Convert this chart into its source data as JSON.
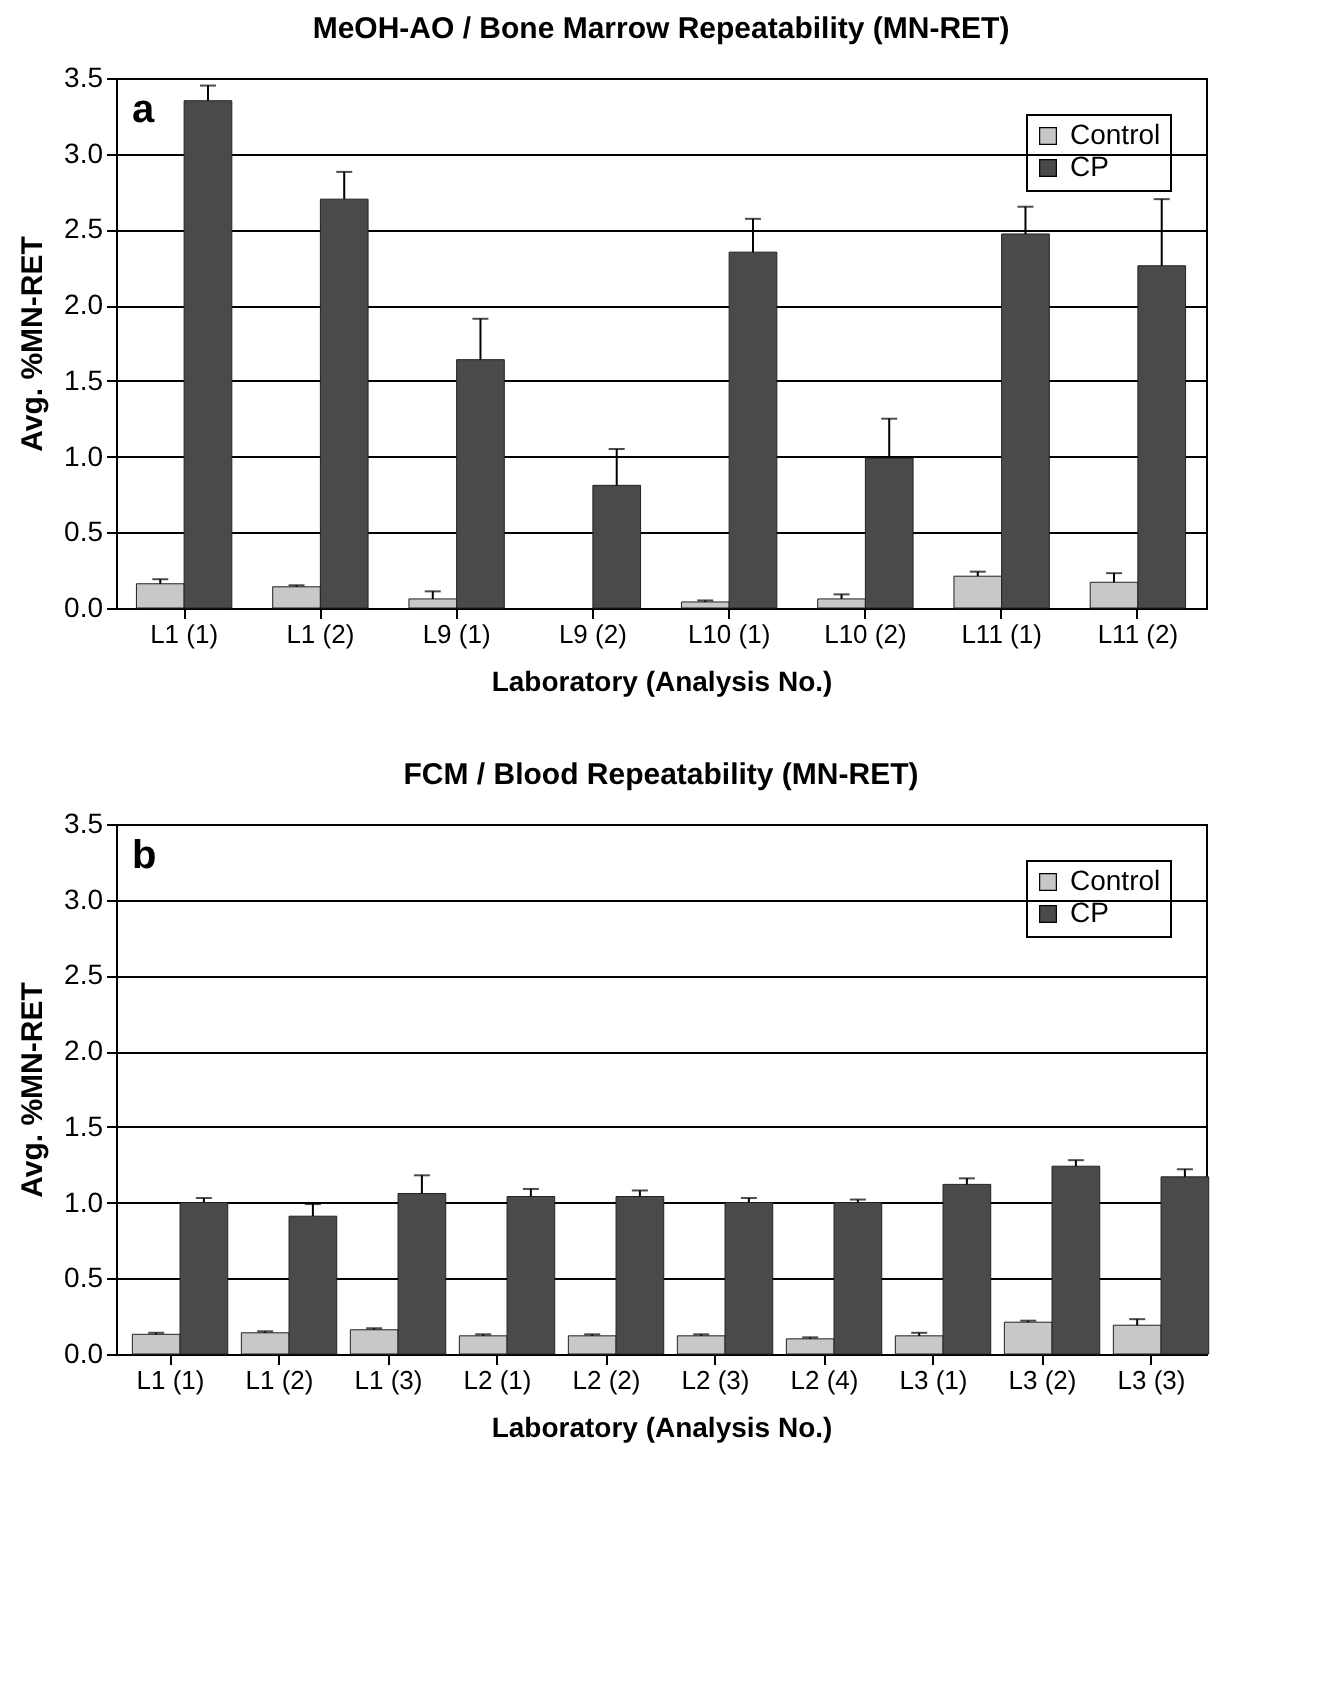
{
  "chart_data": [
    {
      "type": "bar",
      "title": "MeOH-AO / Bone Marrow Repeatability (MN-RET)",
      "xlabel": "Laboratory (Analysis No.)",
      "ylabel": "Avg. %MN-RET",
      "categories": [
        "L1 (1)",
        "L1 (2)",
        "L9 (1)",
        "L9 (2)",
        "L10 (1)",
        "L10 (2)",
        "L11 (1)",
        "L11 (2)"
      ],
      "series": [
        {
          "name": "Control",
          "color": "#c8c8c8",
          "values": [
            0.16,
            0.14,
            0.06,
            null,
            0.04,
            0.06,
            0.21,
            0.17
          ],
          "errors": [
            [
              0.16,
              0.19
            ],
            [
              0.14,
              0.15
            ],
            [
              0.06,
              0.11
            ],
            null,
            [
              0.04,
              0.05
            ],
            [
              0.06,
              0.09
            ],
            [
              0.21,
              0.24
            ],
            [
              0.17,
              0.23
            ]
          ]
        },
        {
          "name": "CP",
          "color": "#4a4a4a",
          "values": [
            3.35,
            2.7,
            1.64,
            0.81,
            2.35,
            0.99,
            2.47,
            2.26
          ],
          "errors": [
            [
              3.35,
              3.45
            ],
            [
              2.7,
              2.88
            ],
            [
              1.64,
              1.91
            ],
            [
              0.81,
              1.05
            ],
            [
              2.35,
              2.57
            ],
            [
              0.99,
              1.25
            ],
            [
              2.47,
              2.65
            ],
            [
              2.26,
              2.7
            ]
          ]
        }
      ],
      "ylim": [
        0,
        3.5
      ],
      "yticks": [
        {
          "value": 0,
          "label": "0.0"
        },
        0.5,
        {
          "value": 1,
          "label": "1.0"
        },
        1.5,
        {
          "value": 2,
          "label": "2.0"
        },
        2.5,
        {
          "value": 3,
          "label": "3.0"
        },
        3.5
      ],
      "grid": "y",
      "legend": "top right",
      "annotations": [
        "a"
      ]
    },
    {
      "type": "bar",
      "title": "FCM / Blood Repeatability (MN-RET)",
      "xlabel": "Laboratory (Analysis No.)",
      "ylabel": "Avg. %MN-RET",
      "categories": [
        "L1 (1)",
        "L1 (2)",
        "L1 (3)",
        "L2 (1)",
        "L2 (2)",
        "L2 (3)",
        "L2 (4)",
        "L3 (1)",
        "L3 (2)",
        "L3 (3)"
      ],
      "series": [
        {
          "name": "Control",
          "color": "#c8c8c8",
          "values": [
            0.13,
            0.14,
            0.16,
            0.12,
            0.12,
            0.12,
            0.1,
            0.12,
            0.21,
            0.19
          ],
          "errors": [
            [
              0.13,
              0.14
            ],
            [
              0.14,
              0.15
            ],
            [
              0.16,
              0.17
            ],
            [
              0.12,
              0.13
            ],
            [
              0.12,
              0.13
            ],
            [
              0.12,
              0.13
            ],
            [
              0.1,
              0.11
            ],
            [
              0.12,
              0.14
            ],
            [
              0.21,
              0.22
            ],
            [
              0.19,
              0.23
            ]
          ]
        },
        {
          "name": "CP",
          "color": "#4a4a4a",
          "values": [
            1.0,
            0.91,
            1.06,
            1.04,
            1.04,
            1.0,
            1.0,
            1.12,
            1.24,
            1.17
          ],
          "errors": [
            [
              1.0,
              1.03
            ],
            [
              0.91,
              0.99
            ],
            [
              1.06,
              1.18
            ],
            [
              1.04,
              1.09
            ],
            [
              1.04,
              1.08
            ],
            [
              1.0,
              1.03
            ],
            [
              1.0,
              1.02
            ],
            [
              1.12,
              1.16
            ],
            [
              1.24,
              1.28
            ],
            [
              1.17,
              1.22
            ]
          ]
        }
      ],
      "ylim": [
        0,
        3.5
      ],
      "yticks": [
        {
          "value": 0,
          "label": "0.0"
        },
        0.5,
        {
          "value": 1,
          "label": "1.0"
        },
        1.5,
        {
          "value": 2,
          "label": "2.0"
        },
        2.5,
        {
          "value": 3,
          "label": "3.0"
        },
        3.5
      ],
      "grid": "y",
      "legend": "top right",
      "annotations": [
        "b"
      ]
    }
  ]
}
